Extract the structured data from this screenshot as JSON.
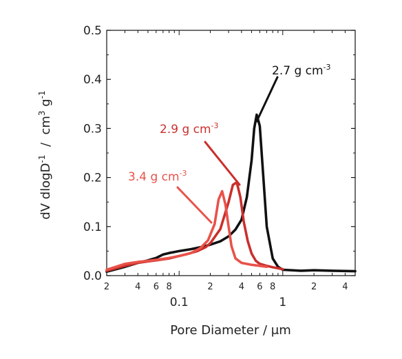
{
  "chart_data": {
    "type": "line",
    "title": "",
    "xlabel": "Pore Diameter / μm",
    "ylabel": "dV dlogD",
    "ylabel_sup": "-1",
    "ylabel_units_part1": "  /  cm",
    "ylabel_units_sup1": "3",
    "ylabel_units_part2": " g",
    "ylabel_units_sup2": "-1",
    "x_scale": "log",
    "xlim": [
      0.02,
      5
    ],
    "ylim": [
      0,
      0.5
    ],
    "y_ticks": [
      {
        "value": 0.0,
        "label": "0.0"
      },
      {
        "value": 0.1,
        "label": "0.1"
      },
      {
        "value": 0.2,
        "label": "0.2"
      },
      {
        "value": 0.3,
        "label": "0.3"
      },
      {
        "value": 0.4,
        "label": "0.4"
      },
      {
        "value": 0.5,
        "label": "0.5"
      }
    ],
    "x_minor_labels": [
      {
        "value": 0.02,
        "label": "2"
      },
      {
        "value": 0.04,
        "label": "4"
      },
      {
        "value": 0.06,
        "label": "6"
      },
      {
        "value": 0.08,
        "label": "8"
      },
      {
        "value": 0.2,
        "label": "2"
      },
      {
        "value": 0.4,
        "label": "4"
      },
      {
        "value": 0.6,
        "label": "6"
      },
      {
        "value": 0.8,
        "label": "8"
      },
      {
        "value": 2,
        "label": "2"
      },
      {
        "value": 4,
        "label": "4"
      }
    ],
    "x_major_labels": [
      {
        "value": 0.1,
        "label": "0.1"
      },
      {
        "value": 1,
        "label": "1"
      }
    ],
    "grid": false,
    "legend": "none",
    "series": [
      {
        "color": "#111111",
        "points": [
          [
            0.02,
            0.008
          ],
          [
            0.03,
            0.018
          ],
          [
            0.04,
            0.026
          ],
          [
            0.05,
            0.031
          ],
          [
            0.06,
            0.036
          ],
          [
            0.07,
            0.043
          ],
          [
            0.08,
            0.046
          ],
          [
            0.1,
            0.05
          ],
          [
            0.13,
            0.054
          ],
          [
            0.16,
            0.058
          ],
          [
            0.2,
            0.063
          ],
          [
            0.25,
            0.07
          ],
          [
            0.3,
            0.08
          ],
          [
            0.35,
            0.094
          ],
          [
            0.4,
            0.114
          ],
          [
            0.45,
            0.16
          ],
          [
            0.5,
            0.235
          ],
          [
            0.53,
            0.3
          ],
          [
            0.56,
            0.328
          ],
          [
            0.6,
            0.305
          ],
          [
            0.65,
            0.2
          ],
          [
            0.7,
            0.1
          ],
          [
            0.8,
            0.035
          ],
          [
            0.9,
            0.018
          ],
          [
            1.0,
            0.012
          ],
          [
            1.5,
            0.01
          ],
          [
            2,
            0.011
          ],
          [
            3,
            0.01
          ],
          [
            5,
            0.009
          ]
        ]
      },
      {
        "color": "#c9302c",
        "annotation": "2.9 g cm",
        "annotation_sup": "-3",
        "points": [
          [
            0.02,
            0.01
          ],
          [
            0.03,
            0.02
          ],
          [
            0.04,
            0.026
          ],
          [
            0.05,
            0.029
          ],
          [
            0.06,
            0.031
          ],
          [
            0.08,
            0.035
          ],
          [
            0.1,
            0.04
          ],
          [
            0.12,
            0.044
          ],
          [
            0.15,
            0.05
          ],
          [
            0.18,
            0.058
          ],
          [
            0.2,
            0.066
          ],
          [
            0.25,
            0.095
          ],
          [
            0.3,
            0.15
          ],
          [
            0.33,
            0.185
          ],
          [
            0.36,
            0.19
          ],
          [
            0.39,
            0.16
          ],
          [
            0.42,
            0.11
          ],
          [
            0.46,
            0.07
          ],
          [
            0.5,
            0.045
          ],
          [
            0.55,
            0.03
          ],
          [
            0.6,
            0.024
          ],
          [
            0.7,
            0.02
          ],
          [
            0.8,
            0.017
          ],
          [
            0.9,
            0.015
          ],
          [
            1.0,
            0.013
          ]
        ]
      },
      {
        "color": "#e8524a",
        "annotation": "3.4 g cm",
        "annotation_sup": "-3",
        "points": [
          [
            0.02,
            0.012
          ],
          [
            0.03,
            0.024
          ],
          [
            0.04,
            0.028
          ],
          [
            0.05,
            0.03
          ],
          [
            0.06,
            0.032
          ],
          [
            0.08,
            0.036
          ],
          [
            0.1,
            0.04
          ],
          [
            0.13,
            0.046
          ],
          [
            0.16,
            0.056
          ],
          [
            0.19,
            0.072
          ],
          [
            0.22,
            0.105
          ],
          [
            0.24,
            0.155
          ],
          [
            0.26,
            0.172
          ],
          [
            0.28,
            0.145
          ],
          [
            0.3,
            0.1
          ],
          [
            0.32,
            0.06
          ],
          [
            0.35,
            0.035
          ],
          [
            0.4,
            0.026
          ],
          [
            0.5,
            0.022
          ],
          [
            0.6,
            0.02
          ],
          [
            0.7,
            0.018
          ]
        ]
      }
    ],
    "annotations": [
      {
        "text": "2.7 g cm",
        "sup": "-3",
        "color": "#111111"
      },
      {
        "text": "2.9 g cm",
        "sup": "-3",
        "color": "#c9302c"
      },
      {
        "text": "3.4 g cm",
        "sup": "-3",
        "color": "#e8524a"
      }
    ]
  }
}
